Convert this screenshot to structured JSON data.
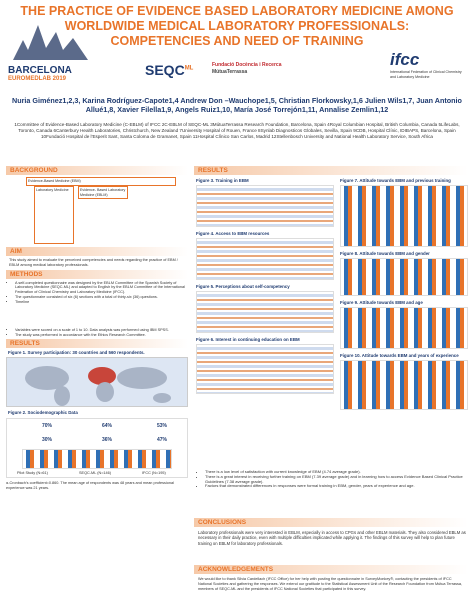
{
  "header": {
    "title": "THE PRACTICE OF EVIDENCE BASED LABORATORY MEDICINE AMONG WORLDWIDE MEDICAL LABORATORY PROFESSIONALS: COMPETENCIES AND NEED OF TRAINING",
    "logos": [
      "BARCELONA",
      "EUROMEDLAB 2019",
      "SEQC",
      "ML",
      "Fundació Docència i Recerca",
      "MútuaTerrassa",
      "ifcc",
      "International Federation of Clinical Chemistry and Laboratory Medicine"
    ]
  },
  "authors": "Nuria Giménez1,2,3, Karina Rodríguez-Capote1,4 Andrew Don –Wauchope1,5, Christian Florkowsky,1,6 Julien Wils1,7, Juan Antonio Allué1,8, Xavier Filella1,9, Angels Ruiz1,10, María José Torrejón1,11, Annalise Zemlin1,12",
  "affiliations": "1Committee of Evidence-Based Laboratory Medicine (C-EBLM) of IFCC 2C-EBLM of SEQC-ML 3MútuaTerrassa Research Foundation, Barcelona, Spain 4Royal Columbian Hospital, British Columbia, Canada 5LifeLabs, Toronto, Canada 6Canterbury Health Laboratories, Christchurch, New Zealand 7University Hospital of Rouen, France 8Synlab Diagnosticos Globales, Sevilla, Spain 9CDB, Hospital Clínic, IDIBAPS, Barcelona, Spain 10Fundació Hospital de l'Esperit Sant, Santa Coloma de Gramanet, Spain 11Hospital Clínico San Carlos, Madrid 12Stellenbosch University and National Health Laboratory Service, South Africa",
  "background": {
    "heading": "BACKGROUND",
    "boxes": [
      "Evidence-Based Medicine (EBM)",
      "Laboratory Medicine",
      "Evidence- Based Laboratory Medicine (EBLM)"
    ]
  },
  "aim": {
    "heading": "AIM",
    "text": "This study aimed to evaluate the perceived competencies and needs regarding the practice of EBM / EBLM among medical laboratory professionals."
  },
  "methods": {
    "heading": "METHODS",
    "items": [
      "A self-completed questionnaire was designed by the EBLM Committee of the Spanish Society of Laboratory Medicine (SEQC-ML) and adapted to English by the EBLM Committee of the International Federation of Clinical Chemistry and Laboratory Medicine (IFCC).",
      "The questionnaire consisted of six (6) sections with a total of thirty-six (36) questions.",
      "Timeline",
      "Variables were scored on a scale of 1 to 10. Data analysis was performed using IBM SPSS.",
      "The study was performed in accordance with the Ethics Research Committee."
    ]
  },
  "results_left": {
    "heading": "RESULTS",
    "fig1": "Figure 1. Survey participation: 30 countries and 560 respondents.",
    "fig2": "Figure 2. Sociodemographic Data",
    "fig2_labels": [
      "70%",
      "30%",
      "64%",
      "36%",
      "53%",
      "47%",
      "Pilot Study (N=61)",
      "SEQC-ML (N=146)",
      "IFCC (N=195)"
    ],
    "note": "α-Cronbach's coefficient=0.860. The mean age of respondents was 48 years and mean professional experience was 21 years."
  },
  "results": {
    "heading": "RESULTS",
    "figures": [
      "Figure 3. Training in EBM",
      "Figure 4. Access to EBM resources",
      "Figure 5. Perceptions about self-competency",
      "Figure 6. Interest in continuing education on EBM",
      "Figure 7. Attitude towards EBM and previous training",
      "Figure 8. Attitude towards EBM and gender",
      "Figure 9. Attitude towards EBM and age",
      "Figure 10. Attitude towards EBM and years of experience"
    ],
    "bullets": [
      "There is a low level of satisfaction with current knowledge of EBM (4.74 average grade).",
      "There is a great interest in receiving further training on EBM (7.39 average grade) and in learning how to access Evidence Based Clinical Practice Guidelines (7.38 average grade).",
      "Factors that demonstrated differences in responses were formal training in EBM, gender, years of experience and age."
    ]
  },
  "conclusions": {
    "heading": "CONCLUSIONS",
    "text": "Laboratory professionals were very interested in EBLM, especially in access to CPGs and other EBLM materials. They also considered EBLM as necessary in their daily practice, even with multiple difficulties implicated while applying it. The findings of this survey will help to plan future training on EBLM for laboratory professionals."
  },
  "acknowledgements": {
    "heading": "ACKNOWLEDGEMENTS",
    "text": "We would like to thank Silvia Cardellach (IFCC Office) for her help with posting the questionnaire in SurveyMonkey®, contacting the presidents of IFCC National Societies and gathering the responses. We extend our gratitude to the Statistical Assessment Unit of the Research Foundation from Mútua Terrassa, members of SEQC-ML and the presidents of IFCC National Societies that participated in this survey."
  }
}
